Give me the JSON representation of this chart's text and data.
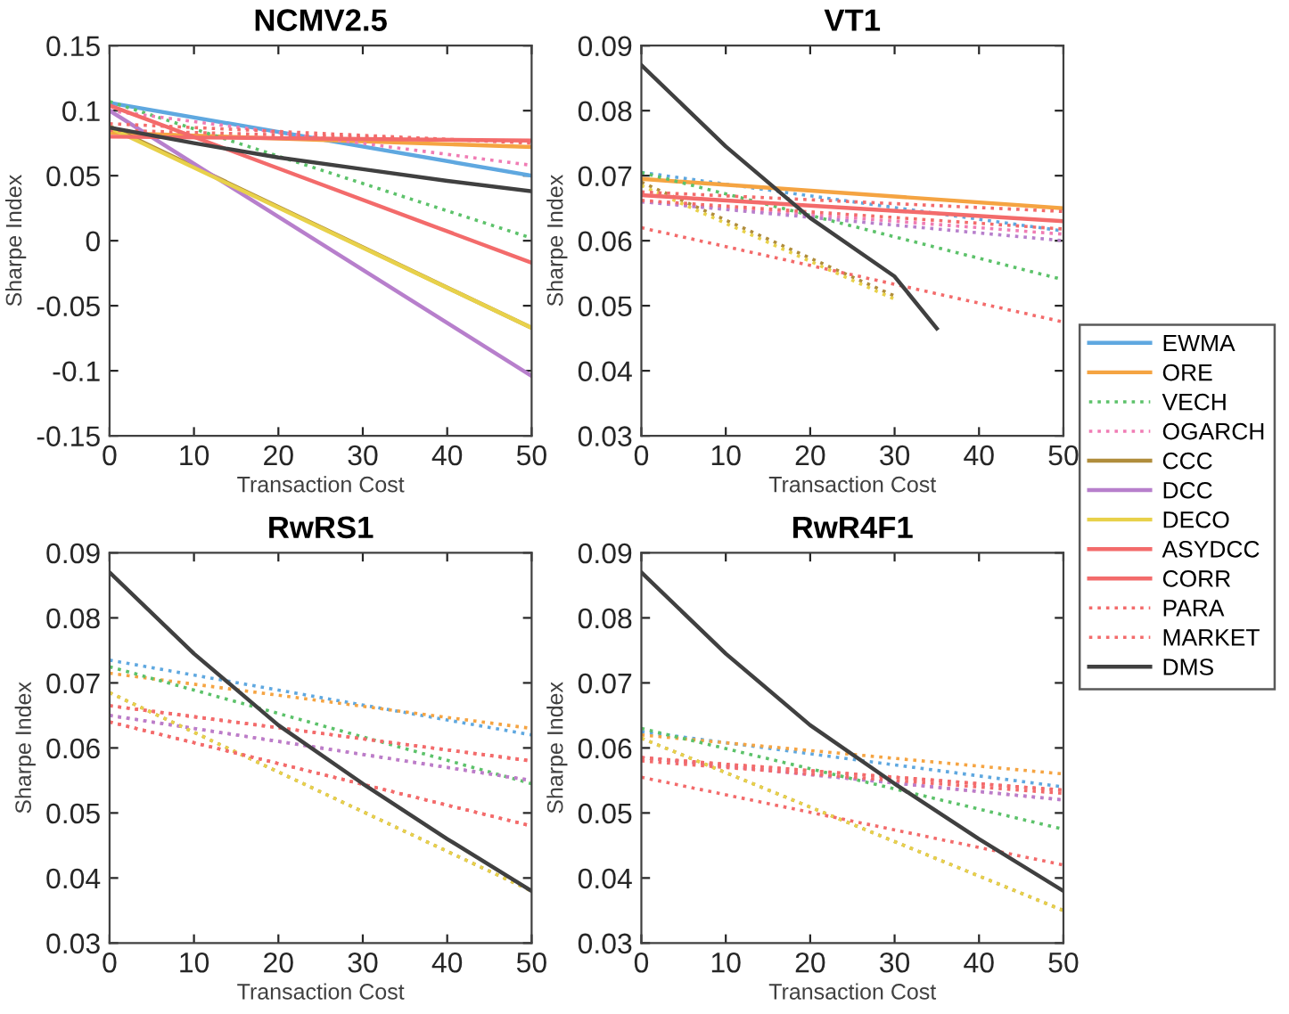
{
  "chart_data": [
    {
      "type": "line",
      "title": "NCMV2.5",
      "xlabel": "Transaction Cost",
      "ylabel": "Sharpe Index",
      "xlim": [
        0,
        50
      ],
      "xticks": [
        0,
        10,
        20,
        30,
        40,
        50
      ],
      "ylim": [
        -0.15,
        0.15
      ],
      "yticks": [
        -0.15,
        -0.1,
        -0.05,
        0,
        0.05,
        0.1,
        0.15
      ],
      "grid": false,
      "legend": "right",
      "series": [
        {
          "name": "EWMA",
          "color": "#5fa8e0",
          "x": [
            0,
            50
          ],
          "values": [
            0.106,
            0.05
          ],
          "line_style": "solid"
        },
        {
          "name": "ORE",
          "color": "#f5a442",
          "x": [
            0,
            50
          ],
          "values": [
            0.083,
            0.072
          ],
          "line_style": "solid"
        },
        {
          "name": "VECH",
          "color": "#5cc26a",
          "x": [
            0,
            50
          ],
          "values": [
            0.107,
            0.002
          ],
          "line_style": "dotted"
        },
        {
          "name": "OGARCH",
          "color": "#f07cb4",
          "x": [
            0,
            50
          ],
          "values": [
            0.1,
            0.058
          ],
          "line_style": "dotted"
        },
        {
          "name": "CCC",
          "color": "#b08d3c",
          "x": [
            0,
            50
          ],
          "values": [
            0.088,
            -0.067
          ],
          "line_style": "solid"
        },
        {
          "name": "DCC",
          "color": "#b77fcc",
          "x": [
            0,
            50
          ],
          "values": [
            0.1,
            -0.104
          ],
          "line_style": "solid"
        },
        {
          "name": "DECO",
          "color": "#e8d14a",
          "x": [
            0,
            50
          ],
          "values": [
            0.087,
            -0.067
          ],
          "line_style": "solid"
        },
        {
          "name": "ASYDCC",
          "color": "#f36b6b",
          "x": [
            0,
            50
          ],
          "values": [
            0.104,
            -0.017
          ],
          "line_style": "solid"
        },
        {
          "name": "CORR",
          "color": "#f36b6b",
          "x": [
            0,
            50
          ],
          "values": [
            0.08,
            0.077
          ],
          "line_style": "solid"
        },
        {
          "name": "PARA",
          "color": "#f36b6b",
          "x": [
            0,
            50
          ],
          "values": [
            0.085,
            0.076
          ],
          "line_style": "dotted"
        },
        {
          "name": "MARKET",
          "color": "#f36b6b",
          "x": [
            0,
            50
          ],
          "values": [
            0.09,
            0.075
          ],
          "line_style": "dotted"
        },
        {
          "name": "DMS",
          "color": "#404040",
          "x": [
            0,
            10,
            20,
            30,
            40,
            50
          ],
          "values": [
            0.087,
            0.075,
            0.064,
            0.055,
            0.046,
            0.038
          ],
          "line_style": "solid"
        }
      ]
    },
    {
      "type": "line",
      "title": "VT1",
      "xlabel": "Transaction Cost",
      "ylabel": "Sharpe Index",
      "xlim": [
        0,
        50
      ],
      "xticks": [
        0,
        10,
        20,
        30,
        40,
        50
      ],
      "ylim": [
        0.03,
        0.09
      ],
      "yticks": [
        0.03,
        0.04,
        0.05,
        0.06,
        0.07,
        0.08,
        0.09
      ],
      "grid": false,
      "series": [
        {
          "color": "#5fa8e0",
          "x": [
            0,
            50
          ],
          "values": [
            0.0705,
            0.0615
          ],
          "line_style": "dotted"
        },
        {
          "color": "#f5a442",
          "x": [
            0,
            50
          ],
          "values": [
            0.0695,
            0.065
          ],
          "line_style": "solid"
        },
        {
          "color": "#5cc26a",
          "x": [
            0,
            50
          ],
          "values": [
            0.0705,
            0.054
          ],
          "line_style": "dotted"
        },
        {
          "color": "#f07cb4",
          "x": [
            0,
            50
          ],
          "values": [
            0.066,
            0.061
          ],
          "line_style": "dotted"
        },
        {
          "color": "#b08d3c",
          "x": [
            0,
            30
          ],
          "values": [
            0.069,
            0.0515
          ],
          "line_style": "dotted"
        },
        {
          "color": "#b77fcc",
          "x": [
            0,
            50
          ],
          "values": [
            0.066,
            0.06
          ],
          "line_style": "dotted"
        },
        {
          "color": "#e8d14a",
          "x": [
            0,
            30
          ],
          "values": [
            0.0685,
            0.051
          ],
          "line_style": "dotted"
        },
        {
          "color": "#f36b6b",
          "x": [
            0,
            50
          ],
          "values": [
            0.067,
            0.063
          ],
          "line_style": "solid"
        },
        {
          "color": "#f36b6b",
          "x": [
            0,
            50
          ],
          "values": [
            0.062,
            0.0475
          ],
          "line_style": "dotted"
        },
        {
          "color": "#f36b6b",
          "x": [
            0,
            50
          ],
          "values": [
            0.0675,
            0.0645
          ],
          "line_style": "dotted"
        },
        {
          "color": "#f36b6b",
          "x": [
            0,
            50
          ],
          "values": [
            0.0662,
            0.0618
          ],
          "line_style": "dotted"
        },
        {
          "color": "#404040",
          "x": [
            0,
            10,
            20,
            30,
            35
          ],
          "values": [
            0.087,
            0.0745,
            0.0635,
            0.0545,
            0.0465
          ],
          "line_style": "solid"
        }
      ]
    },
    {
      "type": "line",
      "title": "RwRS1",
      "xlabel": "Transaction Cost",
      "ylabel": "Sharpe Index",
      "xlim": [
        0,
        50
      ],
      "xticks": [
        0,
        10,
        20,
        30,
        40,
        50
      ],
      "ylim": [
        0.03,
        0.09
      ],
      "yticks": [
        0.03,
        0.04,
        0.05,
        0.06,
        0.07,
        0.08,
        0.09
      ],
      "grid": false,
      "series": [
        {
          "color": "#5fa8e0",
          "x": [
            0,
            50
          ],
          "values": [
            0.0735,
            0.062
          ],
          "line_style": "dotted"
        },
        {
          "color": "#f5a442",
          "x": [
            0,
            50
          ],
          "values": [
            0.0715,
            0.063
          ],
          "line_style": "dotted"
        },
        {
          "color": "#5cc26a",
          "x": [
            0,
            50
          ],
          "values": [
            0.0725,
            0.0545
          ],
          "line_style": "dotted"
        },
        {
          "color": "#f07cb4",
          "x": [
            0,
            50
          ],
          "values": [
            0.065,
            0.055
          ],
          "line_style": "dotted"
        },
        {
          "color": "#b08d3c",
          "x": [
            0,
            50
          ],
          "values": [
            0.0685,
            0.038
          ],
          "line_style": "dotted"
        },
        {
          "color": "#b77fcc",
          "x": [
            0,
            50
          ],
          "values": [
            0.065,
            0.055
          ],
          "line_style": "dotted"
        },
        {
          "color": "#e8d14a",
          "x": [
            0,
            50
          ],
          "values": [
            0.0685,
            0.038
          ],
          "line_style": "dotted"
        },
        {
          "color": "#f36b6b",
          "x": [
            0,
            50
          ],
          "values": [
            0.0665,
            0.058
          ],
          "line_style": "dotted"
        },
        {
          "color": "#f36b6b",
          "x": [
            0,
            50
          ],
          "values": [
            0.064,
            0.048
          ],
          "line_style": "dotted"
        },
        {
          "color": "#f36b6b",
          "x": [
            0,
            50
          ],
          "values": [
            0.0665,
            0.058
          ],
          "line_style": "dotted"
        },
        {
          "color": "#f36b6b",
          "x": [
            0,
            50
          ],
          "values": [
            0.064,
            0.048
          ],
          "line_style": "dotted"
        },
        {
          "color": "#404040",
          "x": [
            0,
            10,
            20,
            30,
            40,
            50
          ],
          "values": [
            0.087,
            0.0745,
            0.0635,
            0.0545,
            0.046,
            0.038
          ],
          "line_style": "solid"
        }
      ]
    },
    {
      "type": "line",
      "title": "RwR4F1",
      "xlabel": "Transaction Cost",
      "ylabel": "Sharpe Index",
      "xlim": [
        0,
        50
      ],
      "xticks": [
        0,
        10,
        20,
        30,
        40,
        50
      ],
      "ylim": [
        0.03,
        0.09
      ],
      "yticks": [
        0.03,
        0.04,
        0.05,
        0.06,
        0.07,
        0.08,
        0.09
      ],
      "grid": false,
      "series": [
        {
          "color": "#5fa8e0",
          "x": [
            0,
            50
          ],
          "values": [
            0.0625,
            0.054
          ],
          "line_style": "dotted"
        },
        {
          "color": "#f5a442",
          "x": [
            0,
            50
          ],
          "values": [
            0.062,
            0.056
          ],
          "line_style": "dotted"
        },
        {
          "color": "#5cc26a",
          "x": [
            0,
            50
          ],
          "values": [
            0.063,
            0.0475
          ],
          "line_style": "dotted"
        },
        {
          "color": "#f07cb4",
          "x": [
            0,
            50
          ],
          "values": [
            0.0585,
            0.052
          ],
          "line_style": "dotted"
        },
        {
          "color": "#b08d3c",
          "x": [
            0,
            50
          ],
          "values": [
            0.0615,
            0.035
          ],
          "line_style": "dotted"
        },
        {
          "color": "#b77fcc",
          "x": [
            0,
            50
          ],
          "values": [
            0.0585,
            0.052
          ],
          "line_style": "dotted"
        },
        {
          "color": "#e8d14a",
          "x": [
            0,
            50
          ],
          "values": [
            0.0615,
            0.035
          ],
          "line_style": "dotted"
        },
        {
          "color": "#f36b6b",
          "x": [
            0,
            50
          ],
          "values": [
            0.0585,
            0.0535
          ],
          "line_style": "dotted"
        },
        {
          "color": "#f36b6b",
          "x": [
            0,
            50
          ],
          "values": [
            0.0555,
            0.042
          ],
          "line_style": "dotted"
        },
        {
          "color": "#f36b6b",
          "x": [
            0,
            50
          ],
          "values": [
            0.0585,
            0.0535
          ],
          "line_style": "dotted"
        },
        {
          "color": "#f36b6b",
          "x": [
            0,
            50
          ],
          "values": [
            0.058,
            0.053
          ],
          "line_style": "dotted"
        },
        {
          "color": "#404040",
          "x": [
            0,
            10,
            20,
            30,
            40,
            50
          ],
          "values": [
            0.087,
            0.0745,
            0.0635,
            0.0545,
            0.046,
            0.038
          ],
          "line_style": "solid"
        }
      ]
    }
  ]
}
